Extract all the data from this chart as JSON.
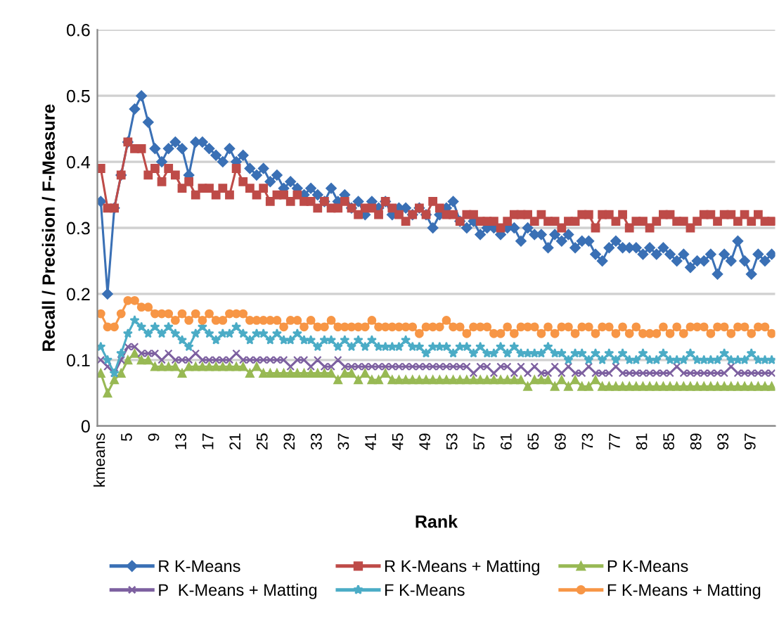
{
  "chart_data": {
    "type": "line",
    "xlabel": "Rank",
    "ylabel": "Recall / Precision / F-Measure",
    "categories": [
      "kmeans",
      null,
      null,
      null,
      "5",
      null,
      null,
      null,
      "9",
      null,
      null,
      null,
      "13",
      null,
      null,
      null,
      "17",
      null,
      null,
      null,
      "21",
      null,
      null,
      null,
      "25",
      null,
      null,
      null,
      "29",
      null,
      null,
      null,
      "33",
      null,
      null,
      null,
      "37",
      null,
      null,
      null,
      "41",
      null,
      null,
      null,
      "45",
      null,
      null,
      null,
      "49",
      null,
      null,
      null,
      "53",
      null,
      null,
      null,
      "57",
      null,
      null,
      null,
      "61",
      null,
      null,
      null,
      "65",
      null,
      null,
      null,
      "69",
      null,
      null,
      null,
      "73",
      null,
      null,
      null,
      "77",
      null,
      null,
      null,
      "81",
      null,
      null,
      null,
      "85",
      null,
      null,
      null,
      "89",
      null,
      null,
      null,
      "93",
      null,
      null,
      null,
      "97",
      null,
      null,
      null
    ],
    "ylim": [
      0,
      0.6
    ],
    "yticks": [
      0,
      0.1,
      0.2,
      0.3,
      0.4,
      0.5,
      0.6
    ],
    "grid": "y",
    "legend": "bottom",
    "line_style": "solid",
    "series": [
      {
        "name": "R K-Means",
        "color": "#3a70b5",
        "marker": "diamond",
        "values": [
          0.34,
          0.2,
          0.33,
          0.38,
          0.43,
          0.48,
          0.5,
          0.46,
          0.42,
          0.4,
          0.42,
          0.43,
          0.42,
          0.38,
          0.43,
          0.43,
          0.42,
          0.41,
          0.4,
          0.42,
          0.4,
          0.41,
          0.39,
          0.38,
          0.39,
          0.37,
          0.38,
          0.36,
          0.37,
          0.36,
          0.35,
          0.36,
          0.35,
          0.34,
          0.36,
          0.34,
          0.35,
          0.33,
          0.34,
          0.32,
          0.34,
          0.33,
          0.34,
          0.32,
          0.33,
          0.33,
          0.32,
          0.33,
          0.32,
          0.3,
          0.32,
          0.33,
          0.34,
          0.31,
          0.3,
          0.31,
          0.29,
          0.3,
          0.3,
          0.29,
          0.3,
          0.3,
          0.28,
          0.3,
          0.29,
          0.29,
          0.27,
          0.29,
          0.28,
          0.29,
          0.27,
          0.28,
          0.28,
          0.26,
          0.25,
          0.27,
          0.28,
          0.27,
          0.27,
          0.27,
          0.26,
          0.27,
          0.26,
          0.27,
          0.26,
          0.25,
          0.26,
          0.24,
          0.25,
          0.25,
          0.26,
          0.23,
          0.26,
          0.25,
          0.28,
          0.25,
          0.23,
          0.26,
          0.25,
          0.26
        ]
      },
      {
        "name": "R K-Means + Matting",
        "color": "#be4b48",
        "marker": "square",
        "values": [
          0.39,
          0.33,
          0.33,
          0.38,
          0.43,
          0.42,
          0.42,
          0.38,
          0.39,
          0.37,
          0.39,
          0.38,
          0.36,
          0.37,
          0.35,
          0.36,
          0.36,
          0.35,
          0.36,
          0.35,
          0.39,
          0.37,
          0.36,
          0.35,
          0.36,
          0.34,
          0.35,
          0.35,
          0.34,
          0.35,
          0.34,
          0.34,
          0.33,
          0.34,
          0.33,
          0.33,
          0.34,
          0.33,
          0.32,
          0.33,
          0.33,
          0.32,
          0.34,
          0.33,
          0.32,
          0.31,
          0.32,
          0.33,
          0.32,
          0.34,
          0.33,
          0.32,
          0.32,
          0.31,
          0.32,
          0.32,
          0.31,
          0.31,
          0.31,
          0.3,
          0.31,
          0.32,
          0.32,
          0.32,
          0.31,
          0.32,
          0.31,
          0.31,
          0.3,
          0.31,
          0.31,
          0.32,
          0.32,
          0.3,
          0.32,
          0.32,
          0.31,
          0.32,
          0.3,
          0.31,
          0.31,
          0.3,
          0.31,
          0.32,
          0.32,
          0.31,
          0.31,
          0.3,
          0.31,
          0.32,
          0.32,
          0.31,
          0.32,
          0.32,
          0.31,
          0.32,
          0.31,
          0.32,
          0.31,
          0.31
        ]
      },
      {
        "name": "P K-Means",
        "color": "#98b954",
        "marker": "triangle",
        "values": [
          0.08,
          0.05,
          0.07,
          0.08,
          0.1,
          0.11,
          0.1,
          0.1,
          0.09,
          0.09,
          0.09,
          0.09,
          0.08,
          0.09,
          0.09,
          0.09,
          0.09,
          0.09,
          0.09,
          0.09,
          0.09,
          0.09,
          0.08,
          0.09,
          0.08,
          0.08,
          0.08,
          0.08,
          0.08,
          0.08,
          0.08,
          0.08,
          0.08,
          0.08,
          0.08,
          0.07,
          0.08,
          0.08,
          0.07,
          0.08,
          0.07,
          0.07,
          0.08,
          0.07,
          0.07,
          0.07,
          0.07,
          0.07,
          0.07,
          0.07,
          0.07,
          0.07,
          0.07,
          0.07,
          0.07,
          0.07,
          0.07,
          0.07,
          0.07,
          0.07,
          0.07,
          0.07,
          0.07,
          0.06,
          0.07,
          0.07,
          0.07,
          0.06,
          0.07,
          0.06,
          0.07,
          0.06,
          0.06,
          0.07,
          0.06,
          0.06,
          0.06,
          0.06,
          0.06,
          0.06,
          0.06,
          0.06,
          0.06,
          0.06,
          0.06,
          0.06,
          0.06,
          0.06,
          0.06,
          0.06,
          0.06,
          0.06,
          0.06,
          0.06,
          0.06,
          0.06,
          0.06,
          0.06,
          0.06,
          0.06
        ]
      },
      {
        "name": "P  K-Means + Matting",
        "color": "#7d60a0",
        "marker": "cross",
        "values": [
          0.1,
          0.09,
          0.08,
          0.1,
          0.12,
          0.12,
          0.11,
          0.11,
          0.11,
          0.1,
          0.11,
          0.1,
          0.1,
          0.1,
          0.11,
          0.1,
          0.1,
          0.1,
          0.1,
          0.1,
          0.11,
          0.1,
          0.1,
          0.1,
          0.1,
          0.1,
          0.1,
          0.1,
          0.09,
          0.1,
          0.1,
          0.09,
          0.1,
          0.09,
          0.09,
          0.1,
          0.09,
          0.09,
          0.09,
          0.09,
          0.09,
          0.09,
          0.09,
          0.09,
          0.09,
          0.09,
          0.09,
          0.09,
          0.09,
          0.09,
          0.09,
          0.09,
          0.09,
          0.09,
          0.09,
          0.08,
          0.09,
          0.09,
          0.08,
          0.09,
          0.09,
          0.08,
          0.09,
          0.08,
          0.09,
          0.08,
          0.08,
          0.09,
          0.08,
          0.09,
          0.08,
          0.08,
          0.09,
          0.08,
          0.08,
          0.08,
          0.09,
          0.08,
          0.08,
          0.08,
          0.08,
          0.08,
          0.08,
          0.08,
          0.08,
          0.09,
          0.08,
          0.08,
          0.08,
          0.08,
          0.08,
          0.08,
          0.08,
          0.09,
          0.08,
          0.08,
          0.08,
          0.08,
          0.08,
          0.08
        ]
      },
      {
        "name": "F K-Means",
        "color": "#4bacc6",
        "marker": "star",
        "values": [
          0.12,
          0.1,
          0.08,
          0.11,
          0.14,
          0.16,
          0.15,
          0.14,
          0.15,
          0.14,
          0.15,
          0.14,
          0.13,
          0.12,
          0.14,
          0.15,
          0.14,
          0.13,
          0.14,
          0.14,
          0.15,
          0.14,
          0.13,
          0.14,
          0.14,
          0.13,
          0.14,
          0.13,
          0.13,
          0.14,
          0.13,
          0.13,
          0.12,
          0.13,
          0.13,
          0.12,
          0.13,
          0.12,
          0.13,
          0.12,
          0.13,
          0.12,
          0.12,
          0.12,
          0.12,
          0.13,
          0.12,
          0.12,
          0.11,
          0.12,
          0.12,
          0.12,
          0.11,
          0.12,
          0.12,
          0.11,
          0.12,
          0.11,
          0.11,
          0.12,
          0.11,
          0.12,
          0.11,
          0.11,
          0.11,
          0.11,
          0.12,
          0.11,
          0.11,
          0.1,
          0.11,
          0.11,
          0.1,
          0.11,
          0.1,
          0.11,
          0.1,
          0.11,
          0.1,
          0.1,
          0.11,
          0.1,
          0.1,
          0.11,
          0.1,
          0.1,
          0.1,
          0.11,
          0.1,
          0.1,
          0.1,
          0.1,
          0.11,
          0.1,
          0.1,
          0.1,
          0.11,
          0.1,
          0.1,
          0.1
        ]
      },
      {
        "name": "F K-Means + Matting",
        "color": "#f79646",
        "marker": "circle",
        "values": [
          0.17,
          0.15,
          0.15,
          0.17,
          0.19,
          0.19,
          0.18,
          0.18,
          0.17,
          0.17,
          0.17,
          0.16,
          0.17,
          0.16,
          0.17,
          0.16,
          0.17,
          0.16,
          0.16,
          0.17,
          0.17,
          0.17,
          0.16,
          0.16,
          0.16,
          0.16,
          0.16,
          0.15,
          0.16,
          0.16,
          0.15,
          0.16,
          0.15,
          0.15,
          0.16,
          0.15,
          0.15,
          0.15,
          0.15,
          0.15,
          0.16,
          0.15,
          0.15,
          0.15,
          0.15,
          0.15,
          0.15,
          0.14,
          0.15,
          0.15,
          0.15,
          0.16,
          0.15,
          0.15,
          0.14,
          0.15,
          0.15,
          0.15,
          0.14,
          0.14,
          0.15,
          0.14,
          0.15,
          0.15,
          0.15,
          0.14,
          0.15,
          0.14,
          0.15,
          0.15,
          0.14,
          0.15,
          0.15,
          0.14,
          0.15,
          0.15,
          0.14,
          0.15,
          0.14,
          0.15,
          0.14,
          0.14,
          0.14,
          0.15,
          0.14,
          0.15,
          0.14,
          0.15,
          0.15,
          0.15,
          0.14,
          0.15,
          0.15,
          0.14,
          0.15,
          0.15,
          0.14,
          0.15,
          0.15,
          0.14
        ]
      }
    ]
  }
}
